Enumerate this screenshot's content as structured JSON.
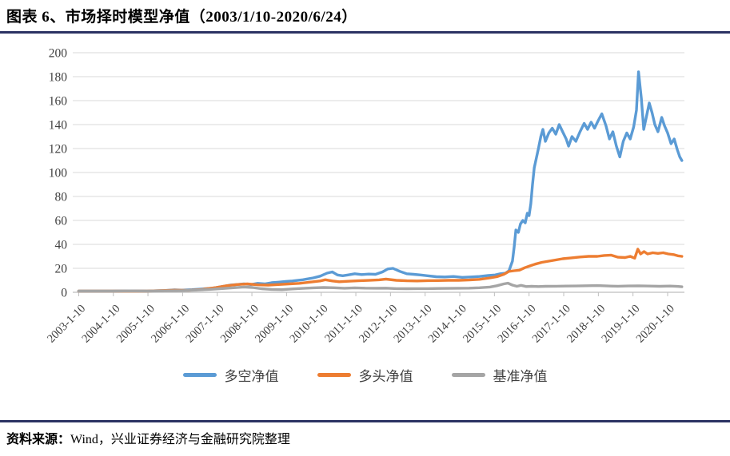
{
  "title": "图表 6、市场择时模型净值（2003/1/10-2020/6/24）",
  "source": {
    "label": "资料来源：",
    "text": "Wind，兴业证券经济与金融研究院整理"
  },
  "colors": {
    "rule": "#2B3263",
    "grid": "#D9D9D9",
    "axis_line": "#BFBFBF",
    "axis_text": "#404040",
    "long_short_blue": "#5B9BD5",
    "long_orange": "#ED7D31",
    "benchmark_gray": "#A5A5A5"
  },
  "legend": {
    "items": [
      {
        "label": "多空净值",
        "color": "#5B9BD5"
      },
      {
        "label": "多头净值",
        "color": "#ED7D31"
      },
      {
        "label": "基准净值",
        "color": "#A5A5A5"
      }
    ]
  },
  "chart_data": {
    "type": "line",
    "title": "市场择时模型净值",
    "grid": "horizontal",
    "legend_position": "bottom",
    "y_axis": {
      "min": 0,
      "max": 200,
      "tick_step": 20,
      "ticks": [
        0,
        20,
        40,
        60,
        80,
        100,
        120,
        140,
        160,
        180,
        200
      ]
    },
    "x_axis": {
      "label_rotation_deg": 45,
      "tick_labels": [
        "2003-1-10",
        "2004-1-10",
        "2005-1-10",
        "2006-1-10",
        "2007-1-10",
        "2008-1-10",
        "2009-1-10",
        "2010-1-10",
        "2011-1-10",
        "2012-1-10",
        "2013-1-10",
        "2014-1-10",
        "2015-1-10",
        "2016-1-10",
        "2017-1-10",
        "2018-1-10",
        "2019-1-10",
        "2020-1-10"
      ],
      "range_years": [
        2003.03,
        2020.48
      ]
    },
    "series": [
      {
        "name": "多空净值",
        "color": "#5B9BD5",
        "points": [
          [
            2003.03,
            1
          ],
          [
            2003.5,
            1
          ],
          [
            2004,
            1
          ],
          [
            2004.5,
            1.2
          ],
          [
            2005,
            1.1
          ],
          [
            2005.5,
            1.5
          ],
          [
            2005.8,
            2
          ],
          [
            2006,
            1.8
          ],
          [
            2006.3,
            2.2
          ],
          [
            2006.6,
            2.8
          ],
          [
            2006.9,
            3.5
          ],
          [
            2007.1,
            4.5
          ],
          [
            2007.4,
            6
          ],
          [
            2007.6,
            6.5
          ],
          [
            2007.8,
            7
          ],
          [
            2008,
            6.5
          ],
          [
            2008.2,
            7.5
          ],
          [
            2008.4,
            7
          ],
          [
            2008.6,
            8
          ],
          [
            2008.8,
            8.5
          ],
          [
            2009,
            9
          ],
          [
            2009.2,
            9.5
          ],
          [
            2009.5,
            10.5
          ],
          [
            2009.8,
            12
          ],
          [
            2010,
            13.5
          ],
          [
            2010.2,
            16
          ],
          [
            2010.35,
            17
          ],
          [
            2010.5,
            14.5
          ],
          [
            2010.65,
            13.8
          ],
          [
            2010.8,
            14.5
          ],
          [
            2011,
            15.5
          ],
          [
            2011.2,
            14.8
          ],
          [
            2011.4,
            15.2
          ],
          [
            2011.6,
            15
          ],
          [
            2011.8,
            17
          ],
          [
            2011.95,
            19.5
          ],
          [
            2012.1,
            20
          ],
          [
            2012.3,
            17.5
          ],
          [
            2012.5,
            15.5
          ],
          [
            2012.7,
            15
          ],
          [
            2012.9,
            14.5
          ],
          [
            2013.1,
            13.8
          ],
          [
            2013.35,
            13
          ],
          [
            2013.6,
            12.8
          ],
          [
            2013.85,
            13.2
          ],
          [
            2014.1,
            12.5
          ],
          [
            2014.35,
            12.8
          ],
          [
            2014.6,
            13.2
          ],
          [
            2014.85,
            14
          ],
          [
            2015.05,
            14.5
          ],
          [
            2015.2,
            15.5
          ],
          [
            2015.35,
            16
          ],
          [
            2015.45,
            18
          ],
          [
            2015.55,
            26
          ],
          [
            2015.6,
            38
          ],
          [
            2015.65,
            52
          ],
          [
            2015.72,
            50
          ],
          [
            2015.78,
            57
          ],
          [
            2015.85,
            60
          ],
          [
            2015.92,
            58
          ],
          [
            2015.98,
            66
          ],
          [
            2016.03,
            64
          ],
          [
            2016.08,
            74
          ],
          [
            2016.13,
            90
          ],
          [
            2016.18,
            104
          ],
          [
            2016.24,
            112
          ],
          [
            2016.3,
            120
          ],
          [
            2016.37,
            130
          ],
          [
            2016.43,
            136
          ],
          [
            2016.5,
            126
          ],
          [
            2016.6,
            133
          ],
          [
            2016.7,
            137
          ],
          [
            2016.8,
            132
          ],
          [
            2016.9,
            140
          ],
          [
            2017,
            134
          ],
          [
            2017.1,
            128
          ],
          [
            2017.17,
            122
          ],
          [
            2017.27,
            130
          ],
          [
            2017.38,
            126
          ],
          [
            2017.5,
            134
          ],
          [
            2017.62,
            141
          ],
          [
            2017.72,
            136
          ],
          [
            2017.82,
            142
          ],
          [
            2017.92,
            137
          ],
          [
            2018.02,
            143
          ],
          [
            2018.13,
            149
          ],
          [
            2018.25,
            139
          ],
          [
            2018.35,
            128
          ],
          [
            2018.45,
            134
          ],
          [
            2018.55,
            122
          ],
          [
            2018.65,
            113
          ],
          [
            2018.75,
            126
          ],
          [
            2018.85,
            133
          ],
          [
            2018.95,
            128
          ],
          [
            2019.05,
            138
          ],
          [
            2019.13,
            152
          ],
          [
            2019.19,
            184
          ],
          [
            2019.27,
            162
          ],
          [
            2019.34,
            136
          ],
          [
            2019.42,
            147
          ],
          [
            2019.5,
            158
          ],
          [
            2019.58,
            150
          ],
          [
            2019.66,
            140
          ],
          [
            2019.75,
            134
          ],
          [
            2019.86,
            146
          ],
          [
            2019.94,
            139
          ],
          [
            2020.03,
            133
          ],
          [
            2020.13,
            124
          ],
          [
            2020.22,
            128
          ],
          [
            2020.31,
            119
          ],
          [
            2020.38,
            113
          ],
          [
            2020.44,
            110
          ]
        ]
      },
      {
        "name": "多头净值",
        "color": "#ED7D31",
        "points": [
          [
            2003.03,
            1
          ],
          [
            2004,
            1
          ],
          [
            2005,
            1
          ],
          [
            2005.8,
            1.8
          ],
          [
            2006.2,
            1.6
          ],
          [
            2006.6,
            2.4
          ],
          [
            2007,
            4
          ],
          [
            2007.3,
            5.5
          ],
          [
            2007.6,
            6.5
          ],
          [
            2007.9,
            7
          ],
          [
            2008.2,
            6.2
          ],
          [
            2008.5,
            6
          ],
          [
            2008.8,
            6.5
          ],
          [
            2009.1,
            7
          ],
          [
            2009.4,
            7.5
          ],
          [
            2009.7,
            8.5
          ],
          [
            2010,
            9.5
          ],
          [
            2010.15,
            10.5
          ],
          [
            2010.35,
            9.5
          ],
          [
            2010.55,
            8.8
          ],
          [
            2010.8,
            9.2
          ],
          [
            2011.1,
            9.6
          ],
          [
            2011.4,
            9.9
          ],
          [
            2011.7,
            10.4
          ],
          [
            2011.9,
            11
          ],
          [
            2012.2,
            10
          ],
          [
            2012.5,
            9.6
          ],
          [
            2012.8,
            9.5
          ],
          [
            2013.1,
            9.7
          ],
          [
            2013.4,
            9.8
          ],
          [
            2013.7,
            10
          ],
          [
            2014,
            10
          ],
          [
            2014.3,
            10.3
          ],
          [
            2014.6,
            10.8
          ],
          [
            2014.9,
            12
          ],
          [
            2015.1,
            13
          ],
          [
            2015.3,
            15
          ],
          [
            2015.45,
            17.5
          ],
          [
            2015.6,
            18
          ],
          [
            2015.75,
            18.5
          ],
          [
            2015.9,
            20.5
          ],
          [
            2016.05,
            22
          ],
          [
            2016.2,
            23.5
          ],
          [
            2016.4,
            25
          ],
          [
            2016.6,
            26
          ],
          [
            2016.8,
            27
          ],
          [
            2017,
            28
          ],
          [
            2017.25,
            28.7
          ],
          [
            2017.5,
            29.5
          ],
          [
            2017.75,
            30
          ],
          [
            2018,
            30
          ],
          [
            2018.2,
            30.7
          ],
          [
            2018.4,
            31
          ],
          [
            2018.6,
            29.3
          ],
          [
            2018.8,
            29
          ],
          [
            2018.95,
            30
          ],
          [
            2019.08,
            28.5
          ],
          [
            2019.17,
            36
          ],
          [
            2019.25,
            32
          ],
          [
            2019.35,
            34
          ],
          [
            2019.45,
            32
          ],
          [
            2019.6,
            33
          ],
          [
            2019.75,
            32.5
          ],
          [
            2019.9,
            33
          ],
          [
            2020.05,
            32
          ],
          [
            2020.2,
            31.5
          ],
          [
            2020.32,
            30.5
          ],
          [
            2020.44,
            30
          ]
        ]
      },
      {
        "name": "基准净值",
        "color": "#A5A5A5",
        "points": [
          [
            2003.03,
            1
          ],
          [
            2004,
            1
          ],
          [
            2004.5,
            1.2
          ],
          [
            2005,
            1
          ],
          [
            2005.5,
            1.2
          ],
          [
            2006,
            1.4
          ],
          [
            2006.4,
            1.8
          ],
          [
            2006.8,
            2.4
          ],
          [
            2007.1,
            3
          ],
          [
            2007.5,
            3.8
          ],
          [
            2007.8,
            4.4
          ],
          [
            2008.05,
            4
          ],
          [
            2008.3,
            3
          ],
          [
            2008.6,
            2.4
          ],
          [
            2008.9,
            2.2
          ],
          [
            2009.2,
            2.8
          ],
          [
            2009.5,
            3.3
          ],
          [
            2009.8,
            3.7
          ],
          [
            2010.1,
            4
          ],
          [
            2010.4,
            3.8
          ],
          [
            2010.7,
            3.4
          ],
          [
            2011,
            3.7
          ],
          [
            2011.3,
            3.5
          ],
          [
            2011.6,
            3.4
          ],
          [
            2011.9,
            3.5
          ],
          [
            2012.2,
            3.1
          ],
          [
            2012.5,
            3
          ],
          [
            2012.8,
            3.1
          ],
          [
            2013.1,
            3.1
          ],
          [
            2013.4,
            3.2
          ],
          [
            2013.7,
            3.3
          ],
          [
            2014,
            3.4
          ],
          [
            2014.3,
            3.5
          ],
          [
            2014.6,
            3.8
          ],
          [
            2014.9,
            4.4
          ],
          [
            2015.1,
            5.5
          ],
          [
            2015.3,
            7
          ],
          [
            2015.42,
            7.6
          ],
          [
            2015.55,
            6
          ],
          [
            2015.68,
            5
          ],
          [
            2015.8,
            5.8
          ],
          [
            2015.95,
            4.8
          ],
          [
            2016.1,
            5
          ],
          [
            2016.3,
            4.8
          ],
          [
            2016.5,
            5
          ],
          [
            2016.8,
            5.1
          ],
          [
            2017.1,
            5.2
          ],
          [
            2017.4,
            5.3
          ],
          [
            2017.7,
            5.5
          ],
          [
            2018,
            5.6
          ],
          [
            2018.3,
            5.3
          ],
          [
            2018.6,
            5.1
          ],
          [
            2018.9,
            5.3
          ],
          [
            2019.2,
            5.4
          ],
          [
            2019.5,
            5.2
          ],
          [
            2019.8,
            5
          ],
          [
            2020.1,
            5.2
          ],
          [
            2020.3,
            4.9
          ],
          [
            2020.44,
            4.6
          ]
        ]
      }
    ]
  }
}
